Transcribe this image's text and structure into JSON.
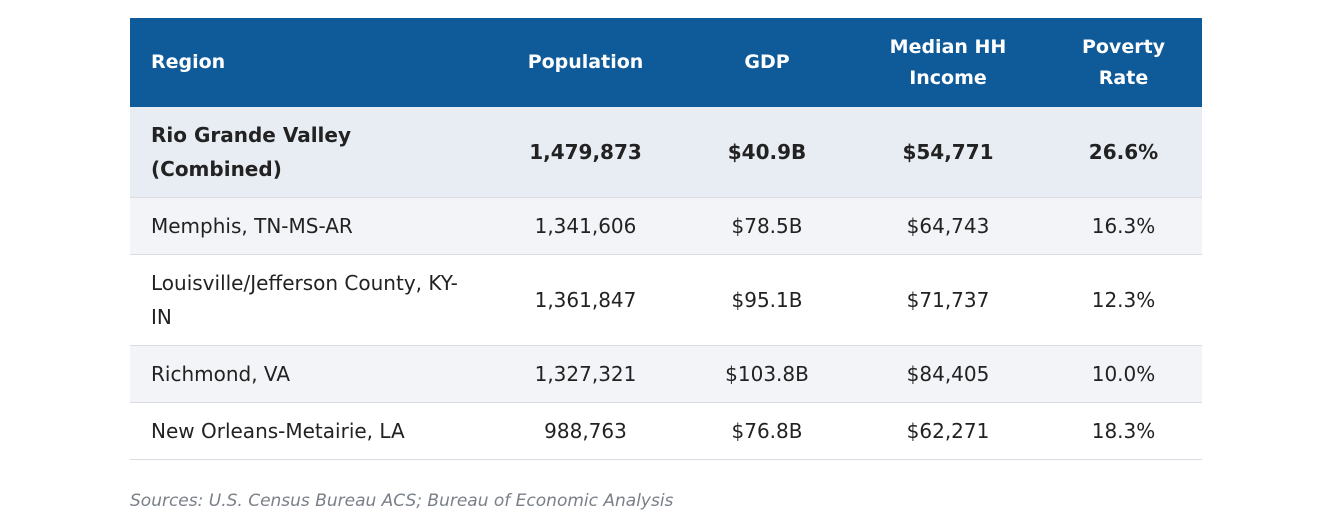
{
  "header": {
    "region": "Region",
    "population": "Population",
    "gdp": "GDP",
    "median_income_line1": "Median HH",
    "median_income_line2": "Income",
    "poverty_line1": "Poverty",
    "poverty_line2": "Rate"
  },
  "rows": [
    {
      "region_line1": "Rio Grande Valley",
      "region_line2": "(Combined)",
      "population": "1,479,873",
      "gdp": "$40.9B",
      "median_income": "$54,771",
      "poverty_rate": "26.6%"
    },
    {
      "region_line1": "Memphis, TN-MS-AR",
      "region_line2": "",
      "population": "1,341,606",
      "gdp": "$78.5B",
      "median_income": "$64,743",
      "poverty_rate": "16.3%"
    },
    {
      "region_line1": "Louisville/Jefferson County, KY-",
      "region_line2": "IN",
      "population": "1,361,847",
      "gdp": "$95.1B",
      "median_income": "$71,737",
      "poverty_rate": "12.3%"
    },
    {
      "region_line1": "Richmond, VA",
      "region_line2": "",
      "population": "1,327,321",
      "gdp": "$103.8B",
      "median_income": "$84,405",
      "poverty_rate": "10.0%"
    },
    {
      "region_line1": "New Orleans-Metairie, LA",
      "region_line2": "",
      "population": "988,763",
      "gdp": "$76.8B",
      "median_income": "$62,271",
      "poverty_rate": "18.3%"
    }
  ],
  "source_note": "Sources: U.S. Census Bureau ACS; Bureau of Economic Analysis",
  "colors": {
    "header_bg": "#0f5a98",
    "header_text": "#ffffff",
    "featured_row_bg": "#e8edf3",
    "alt_row_bg": "#f2f4f7",
    "source_text": "#7a8088"
  }
}
